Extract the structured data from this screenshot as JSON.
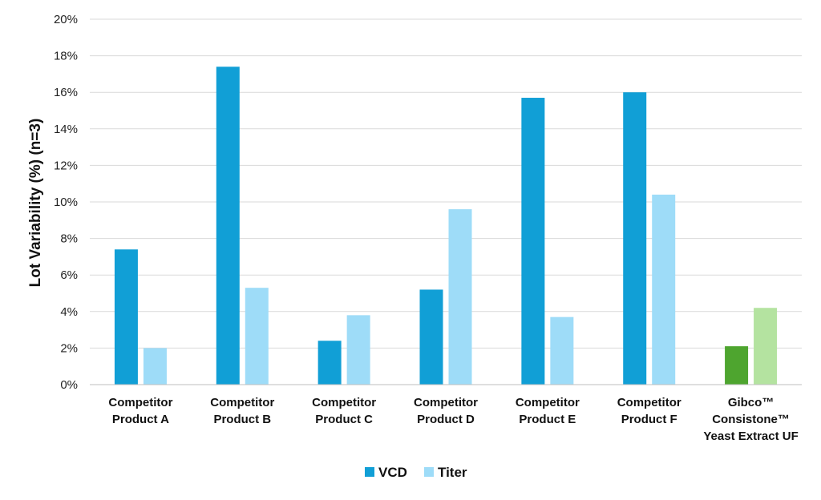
{
  "chart_data": {
    "type": "bar",
    "ylabel": "Lot Variability (%) (n=3)",
    "xlabel": "",
    "ylim": [
      0,
      20
    ],
    "yticks": [
      0,
      2,
      4,
      6,
      8,
      10,
      12,
      14,
      16,
      18,
      20
    ],
    "ytick_suffix": "%",
    "grid": true,
    "legend_position": "bottom-center",
    "categories": [
      [
        "Competitor",
        "Product A"
      ],
      [
        "Competitor",
        "Product B"
      ],
      [
        "Competitor",
        "Product C"
      ],
      [
        "Competitor",
        "Product D"
      ],
      [
        "Competitor",
        "Product E"
      ],
      [
        "Competitor",
        "Product F"
      ],
      [
        "Gibco™",
        "Consistone™",
        "Yeast Extract UF"
      ]
    ],
    "series": [
      {
        "name": "VCD",
        "color": "#119fd6",
        "values": [
          7.4,
          17.4,
          2.4,
          5.2,
          15.7,
          16.0,
          2.1
        ],
        "point_colors": [
          null,
          null,
          null,
          null,
          null,
          null,
          "#4ea52f"
        ]
      },
      {
        "name": "Titer",
        "color": "#9edcf8",
        "values": [
          2.0,
          5.3,
          3.8,
          9.6,
          3.7,
          10.4,
          4.2
        ],
        "point_colors": [
          null,
          null,
          null,
          null,
          null,
          null,
          "#b4e3a0"
        ]
      }
    ]
  }
}
